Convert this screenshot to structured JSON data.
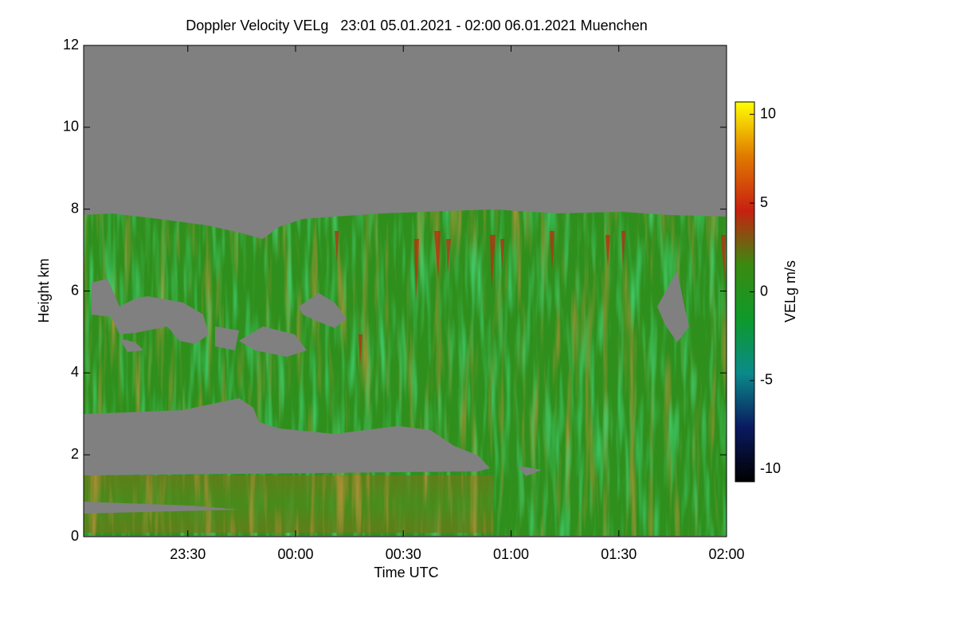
{
  "chart_data": {
    "type": "heatmap",
    "title": "Doppler Velocity VELg   23:01 05.01.2021 - 02:00 06.01.2021 Muenchen",
    "xlabel": "Time UTC",
    "ylabel": "Height km",
    "xlim": [
      1,
      180
    ],
    "xticks": [
      {
        "value": 30,
        "label": "23:30"
      },
      {
        "value": 60,
        "label": "00:00"
      },
      {
        "value": 90,
        "label": "00:30"
      },
      {
        "value": 120,
        "label": "01:00"
      },
      {
        "value": 150,
        "label": "01:30"
      },
      {
        "value": 180,
        "label": "02:00"
      }
    ],
    "ylim": [
      0,
      12
    ],
    "yticks": [
      0,
      2,
      4,
      6,
      8,
      10,
      12
    ],
    "colorbar": {
      "label": "VELg m/s",
      "lim": [
        -10.7,
        10.7
      ],
      "ticks": [
        -10,
        -5,
        0,
        5,
        10
      ],
      "colors": [
        "#000000",
        "#0a1a60",
        "#0a8a8a",
        "#0e9a2a",
        "#3a8a10",
        "#c82010",
        "#e07a00",
        "#ffff00"
      ]
    },
    "no_data_color": "#808080"
  }
}
